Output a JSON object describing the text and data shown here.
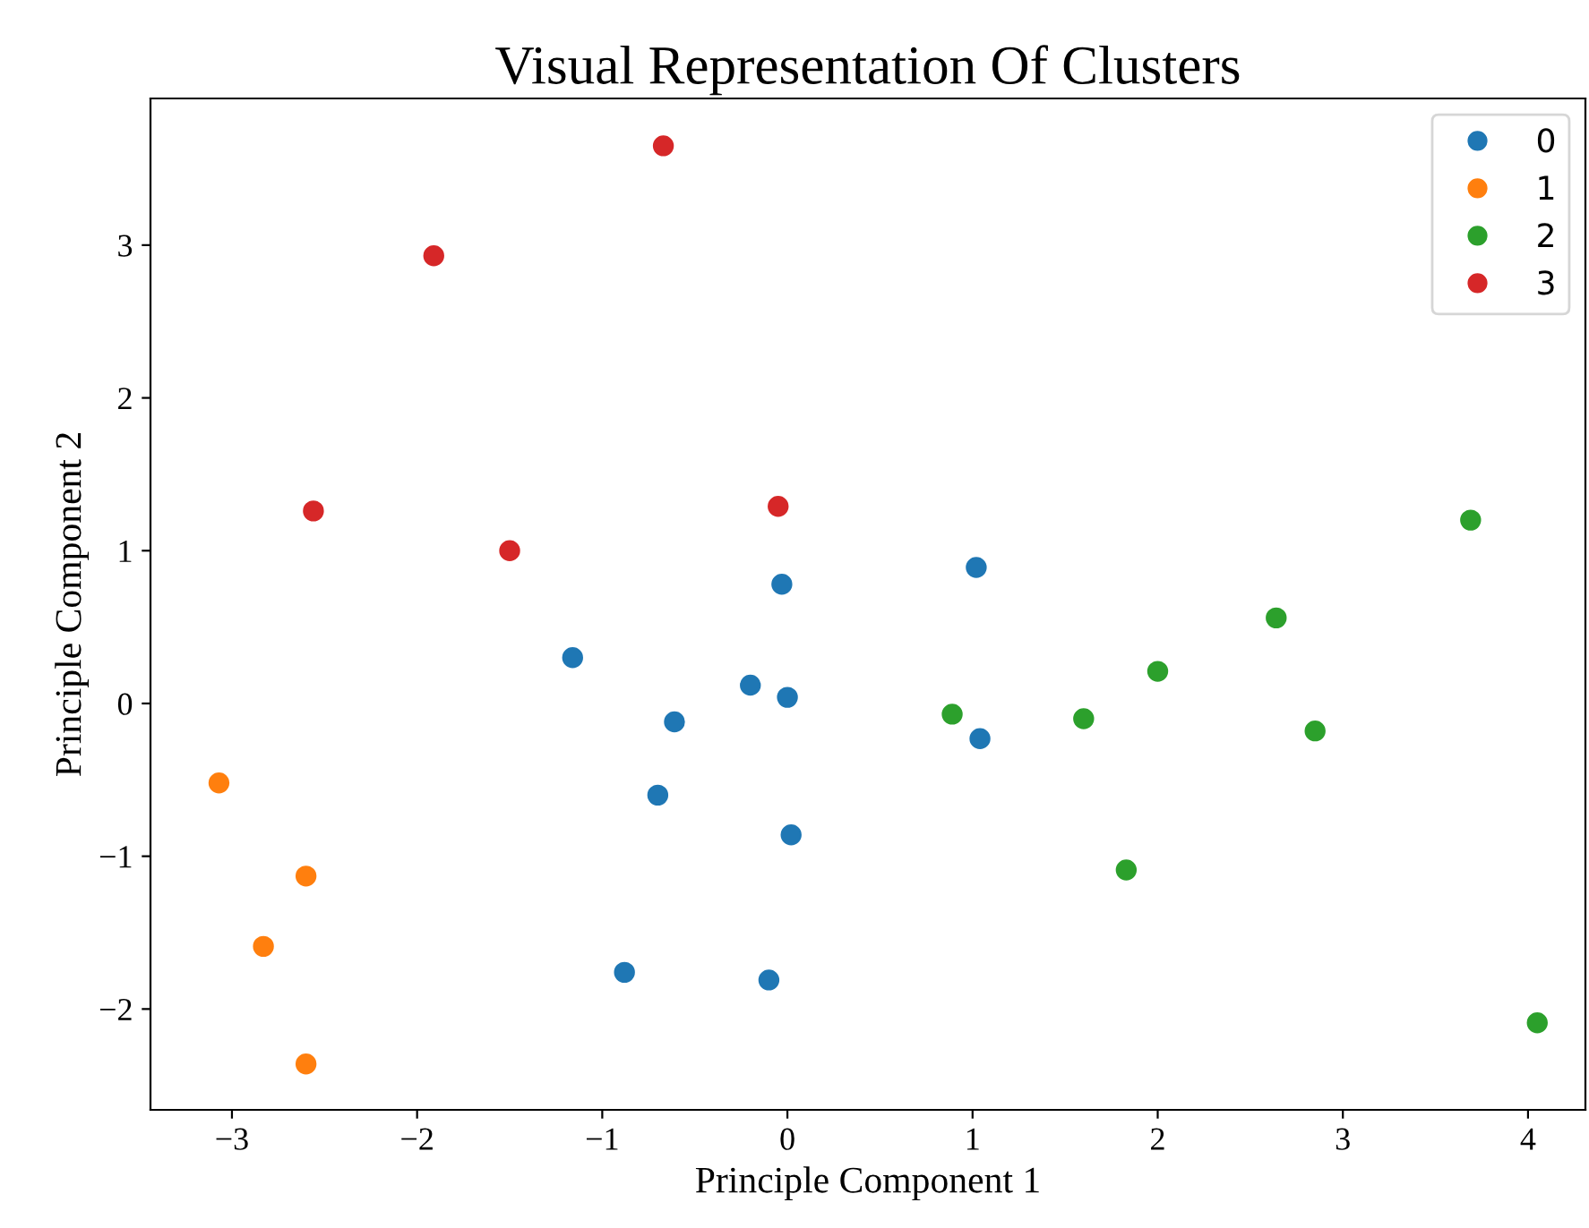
{
  "chart_data": {
    "type": "scatter",
    "title": "Visual Representation Of Clusters",
    "xlabel": "Principle Component 1",
    "ylabel": "Principle Component 2",
    "xlim": [
      -3.44,
      4.31
    ],
    "ylim": [
      -2.66,
      3.96
    ],
    "xticks": [
      -3,
      -2,
      -1,
      0,
      1,
      2,
      3,
      4
    ],
    "yticks": [
      -2,
      -1,
      0,
      1,
      2,
      3
    ],
    "grid": false,
    "legend": "top right",
    "marker": "circle",
    "series": [
      {
        "name": "0",
        "color": "#1f77b4",
        "x": [
          -0.03,
          1.02,
          -1.16,
          -0.2,
          0.0,
          -0.61,
          -0.7,
          0.02,
          -0.88,
          -0.1,
          1.04
        ],
        "values": [
          0.78,
          0.89,
          0.3,
          0.12,
          0.04,
          -0.12,
          -0.6,
          -0.86,
          -1.76,
          -1.81,
          -0.23
        ]
      },
      {
        "name": "1",
        "color": "#ff7f0e",
        "x": [
          -3.07,
          -2.6,
          -2.83,
          -2.6
        ],
        "values": [
          -0.52,
          -1.13,
          -1.59,
          -2.36
        ]
      },
      {
        "name": "2",
        "color": "#2ca02c",
        "x": [
          0.89,
          1.6,
          2.0,
          2.85,
          1.83,
          4.05,
          3.69,
          2.64
        ],
        "values": [
          -0.07,
          -0.1,
          0.21,
          -0.18,
          -1.09,
          -2.09,
          1.2,
          0.56
        ]
      },
      {
        "name": "3",
        "color": "#d62728",
        "x": [
          -0.67,
          -1.91,
          -2.56,
          -1.5,
          -0.05
        ],
        "values": [
          3.65,
          2.93,
          1.26,
          1.0,
          1.29
        ]
      }
    ]
  }
}
